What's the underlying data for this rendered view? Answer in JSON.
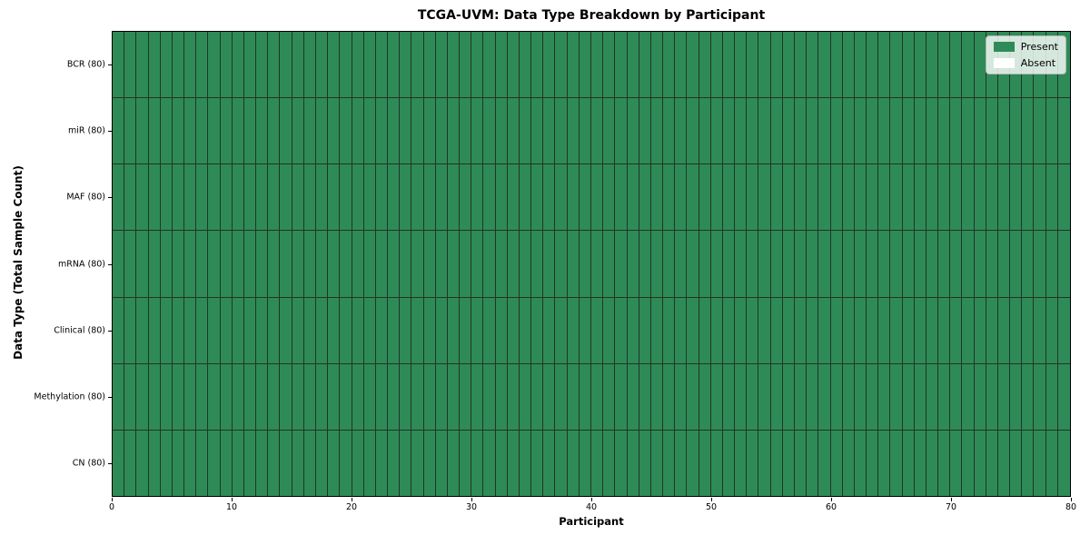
{
  "chart_data": {
    "type": "heatmap",
    "title": "TCGA-UVM: Data Type Breakdown by Participant",
    "xlabel": "Participant",
    "ylabel": "Data Type (Total Sample Count)",
    "x_range": [
      0,
      80
    ],
    "x_ticks": [
      0,
      10,
      20,
      30,
      40,
      50,
      60,
      70,
      80
    ],
    "n_participants": 80,
    "grid": "off",
    "rows_top_to_bottom": [
      {
        "label": "BCR (80)",
        "data_type": "BCR",
        "total_sample_count": 80,
        "present_count": 80,
        "absent_count": 0
      },
      {
        "label": "miR (80)",
        "data_type": "miR",
        "total_sample_count": 80,
        "present_count": 80,
        "absent_count": 0
      },
      {
        "label": "MAF (80)",
        "data_type": "MAF",
        "total_sample_count": 80,
        "present_count": 80,
        "absent_count": 0
      },
      {
        "label": "mRNA (80)",
        "data_type": "mRNA",
        "total_sample_count": 80,
        "present_count": 80,
        "absent_count": 0
      },
      {
        "label": "Clinical (80)",
        "data_type": "Clinical",
        "total_sample_count": 80,
        "present_count": 80,
        "absent_count": 0
      },
      {
        "label": "Methylation (80)",
        "data_type": "Methylation",
        "total_sample_count": 80,
        "present_count": 80,
        "absent_count": 0
      },
      {
        "label": "CN (80)",
        "data_type": "CN",
        "total_sample_count": 80,
        "present_count": 80,
        "absent_count": 0
      }
    ],
    "legend": {
      "position": "upper right",
      "entries": [
        {
          "label": "Present",
          "color": "#2e8b57"
        },
        {
          "label": "Absent",
          "color": "#ffffff"
        }
      ]
    },
    "colors": {
      "present": "#2e8b57",
      "absent": "#ffffff",
      "cell_edge": "#223527",
      "spine": "#000000"
    }
  }
}
